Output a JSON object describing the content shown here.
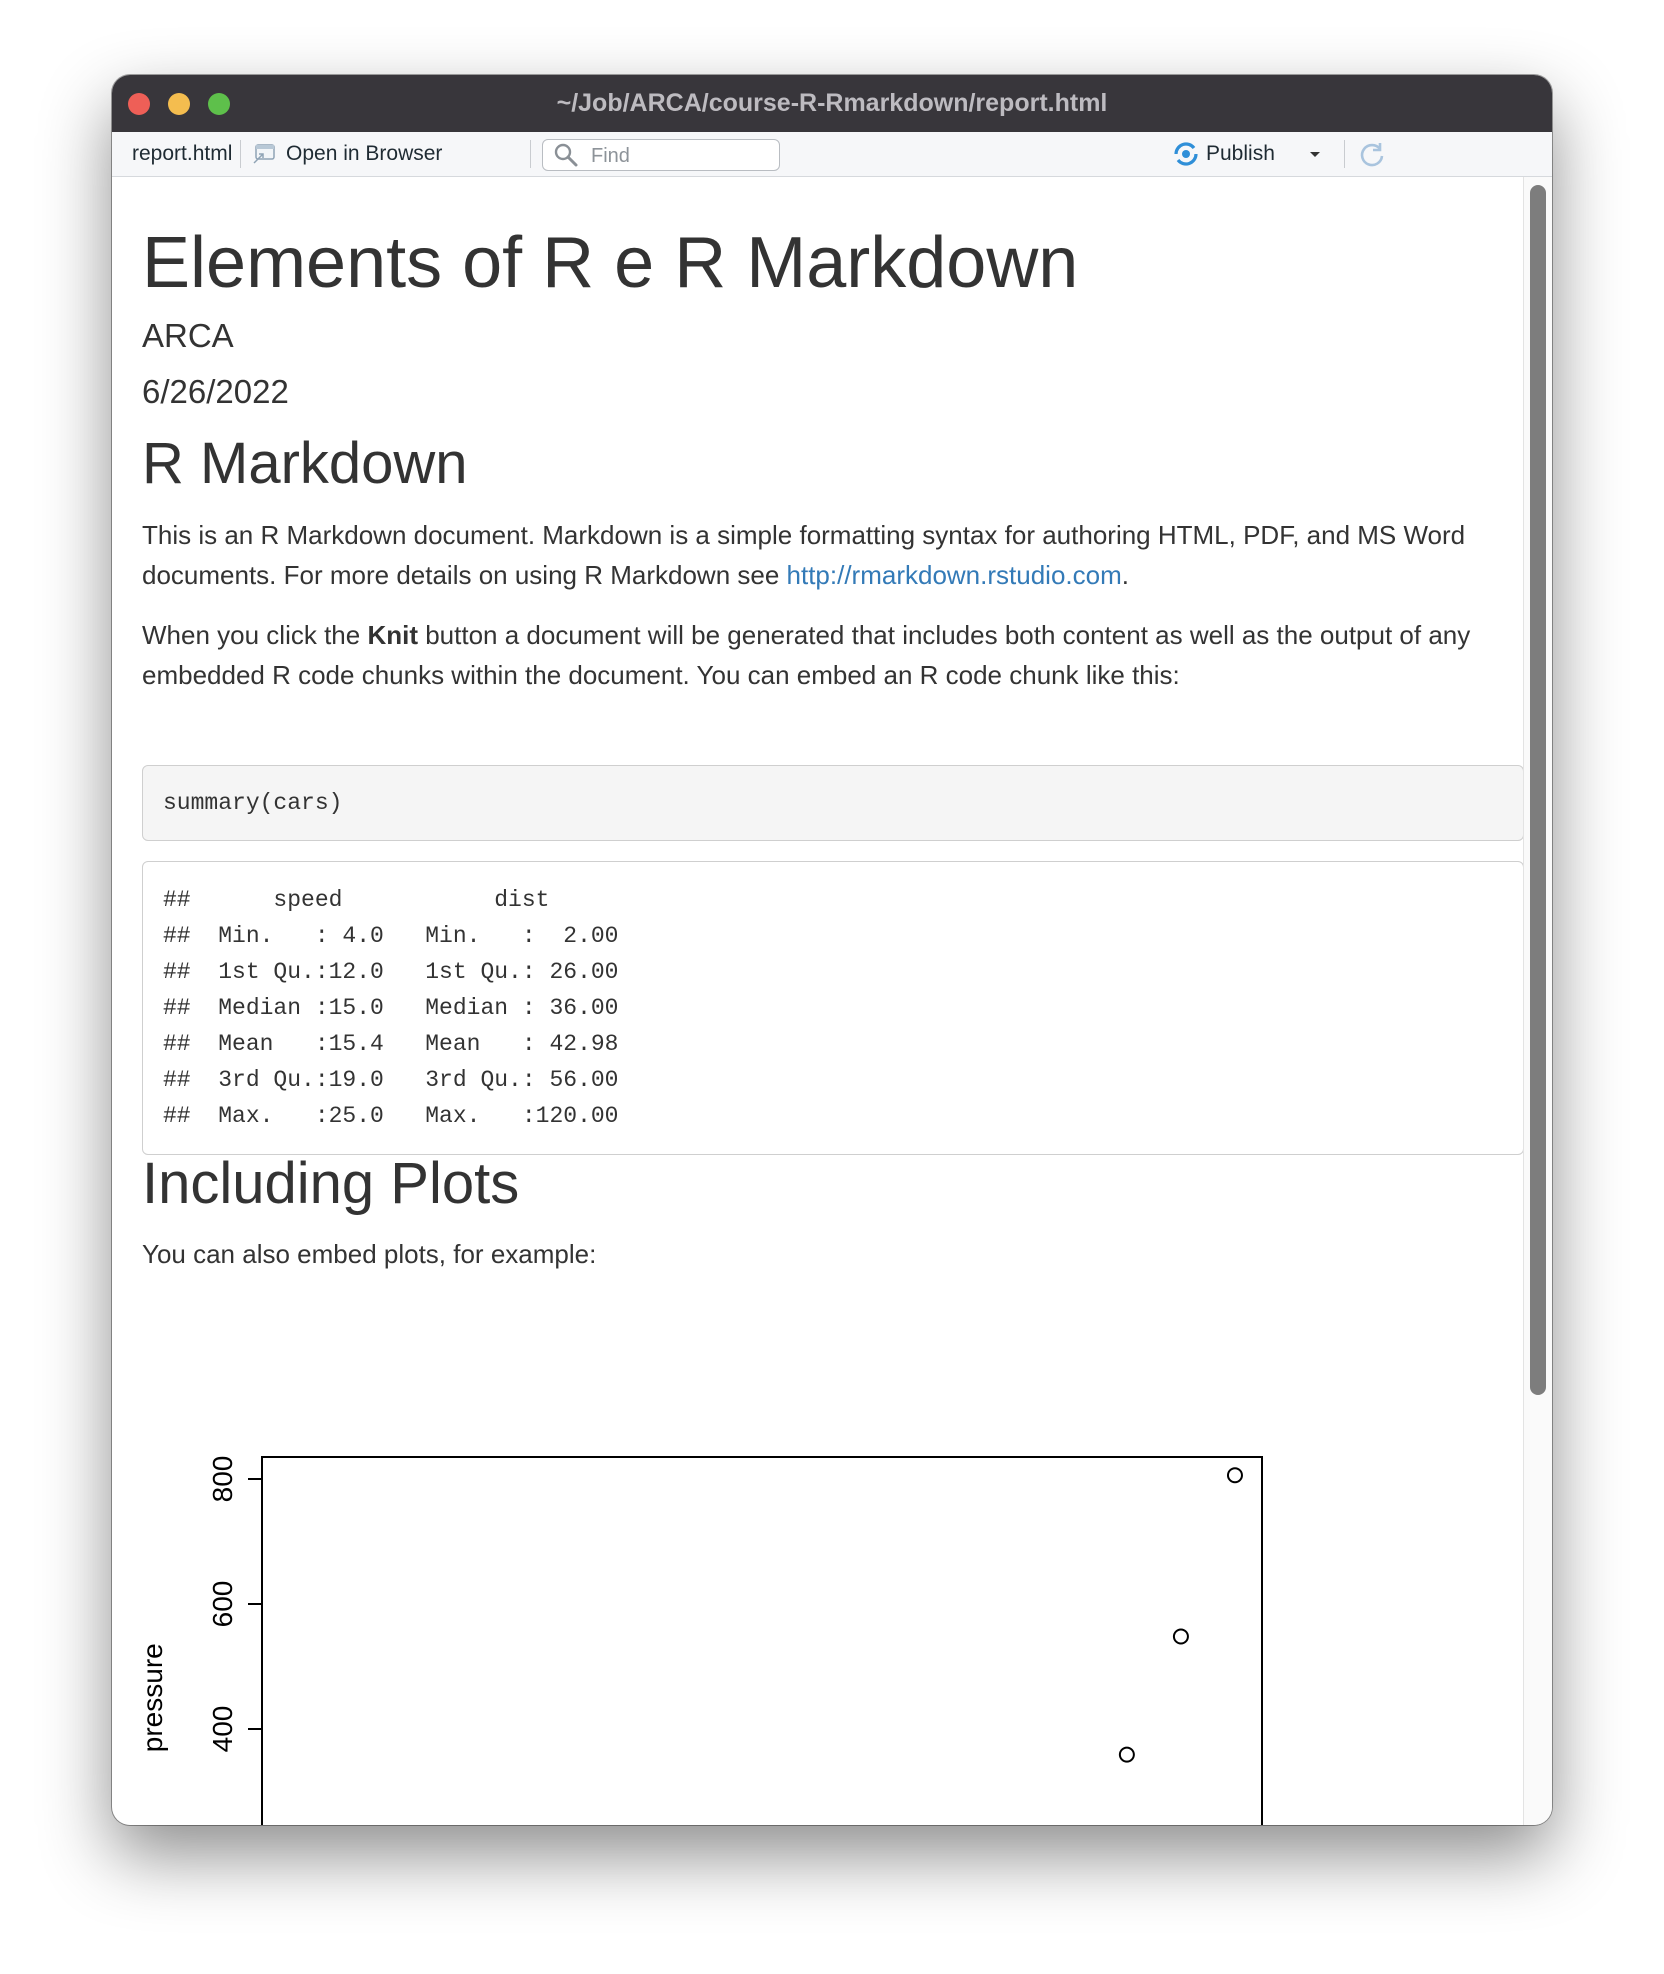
{
  "window": {
    "title": "~/Job/ARCA/course-R-Rmarkdown/report.html"
  },
  "toolbar": {
    "file_tab": "report.html",
    "open_browser": "Open in Browser",
    "find_placeholder": "Find",
    "publish": "Publish"
  },
  "document": {
    "title": "Elements of R e R Markdown",
    "author": "ARCA",
    "date": "6/26/2022",
    "section1": {
      "heading": "R Markdown",
      "para1_text": "This is an R Markdown document. Markdown is a simple formatting syntax for authoring HTML, PDF, and MS Word documents. For more details on using R Markdown see ",
      "para1_link": "http://rmarkdown.rstudio.com",
      "para1_end": ".",
      "para2_start": "When you click the ",
      "para2_bold": "Knit",
      "para2_end": " button a document will be generated that includes both content as well as the output of any embedded R code chunks within the document. You can embed an R code chunk like this:",
      "code": "summary(cars)",
      "output_lines": [
        "##      speed           dist       ",
        "##  Min.   : 4.0   Min.   :  2.00  ",
        "##  1st Qu.:12.0   1st Qu.: 26.00  ",
        "##  Median :15.0   Median : 36.00  ",
        "##  Mean   :15.4   Mean   : 42.98  ",
        "##  3rd Qu.:19.0   3rd Qu.: 56.00  ",
        "##  Max.   :25.0   Max.   :120.00  "
      ]
    },
    "section2": {
      "heading": "Including Plots",
      "para": "You can also embed plots, for example:"
    }
  },
  "chart_data": {
    "type": "scatter",
    "ylabel": "pressure",
    "y_ticks": [
      400,
      600,
      800
    ],
    "points": [
      {
        "x": 320,
        "y": 359
      },
      {
        "x": 340,
        "y": 548
      },
      {
        "x": 360,
        "y": 806
      }
    ],
    "xlim": [
      0,
      370
    ],
    "ylim": [
      0,
      850
    ]
  }
}
